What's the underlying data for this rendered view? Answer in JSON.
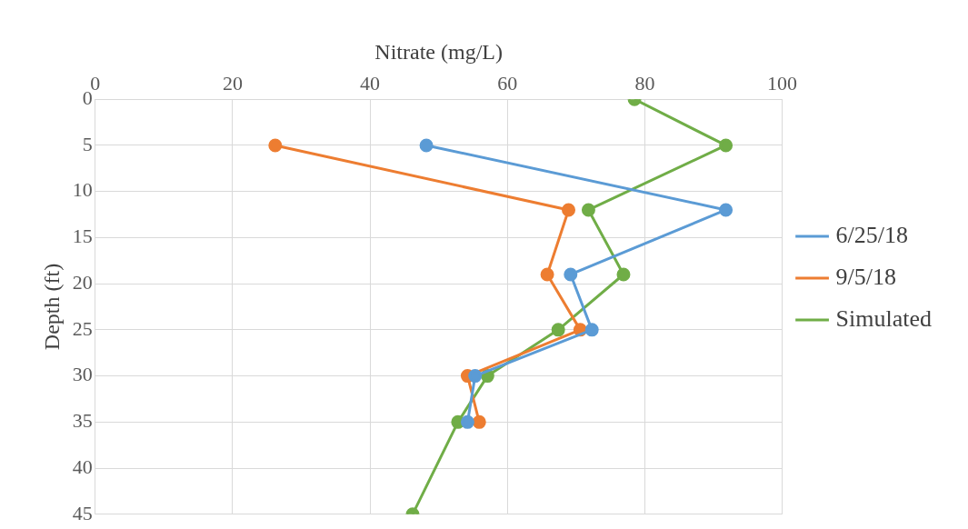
{
  "chart_data": {
    "type": "line",
    "xlabel": "Nitrate (mg/L)",
    "ylabel": "Depth (ft)",
    "xlim": [
      0,
      100
    ],
    "xticks": [
      0,
      20,
      40,
      60,
      80,
      100
    ],
    "ylim": [
      45,
      0
    ],
    "yticks": [
      0,
      5,
      10,
      15,
      20,
      25,
      30,
      35,
      40,
      45
    ],
    "grid": true,
    "legend": "right",
    "marker": "circle",
    "line_style": "solid",
    "series": [
      {
        "name": "6/25/18",
        "color": "#5b9bd5",
        "x": [
          48.2,
          91.8,
          69.2,
          72.3,
          55.3,
          54.2
        ],
        "values": [
          5,
          12,
          19,
          25,
          30,
          35
        ]
      },
      {
        "name": "9/5/18",
        "color": "#ed7d31",
        "x": [
          26.2,
          68.9,
          65.8,
          70.6,
          54.2,
          55.9
        ],
        "values": [
          5,
          12,
          19,
          25,
          30,
          35
        ]
      },
      {
        "name": "Simulated",
        "color": "#70ad47",
        "x": [
          78.5,
          91.8,
          71.8,
          76.9,
          67.4,
          57.1,
          52.8,
          46.2
        ],
        "values": [
          0,
          5,
          12,
          19,
          25,
          30,
          35,
          45
        ]
      }
    ]
  }
}
